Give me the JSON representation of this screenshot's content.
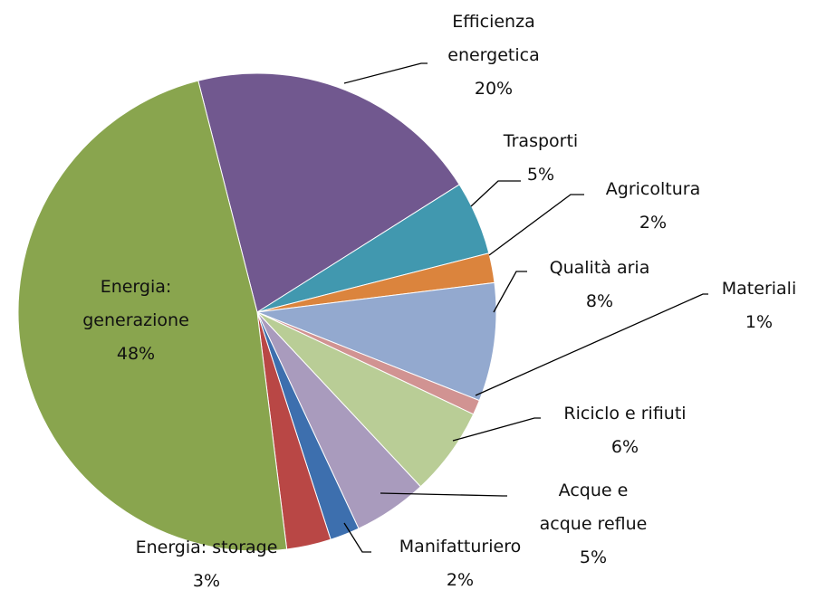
{
  "chart_data": {
    "type": "pie",
    "categories": [
      "Efficienza energetica",
      "Trasporti",
      "Agricoltura",
      "Qualità aria",
      "Materiali",
      "Riciclo e rifiuti",
      "Acque e acque reflue",
      "Manifatturiero",
      "Energia: storage",
      "Energia: generazione"
    ],
    "values": [
      20,
      5,
      2,
      8,
      1,
      6,
      5,
      2,
      3,
      48
    ],
    "value_labels": [
      "20%",
      "5%",
      "2%",
      "8%",
      "1%",
      "6%",
      "5%",
      "2%",
      "3%",
      "48%"
    ],
    "colors": [
      "#71588f",
      "#4198af",
      "#db843d",
      "#93a9cf",
      "#d19392",
      "#b9cd96",
      "#a99bbd",
      "#3d6fae",
      "#b94745",
      "#89a54e"
    ]
  }
}
